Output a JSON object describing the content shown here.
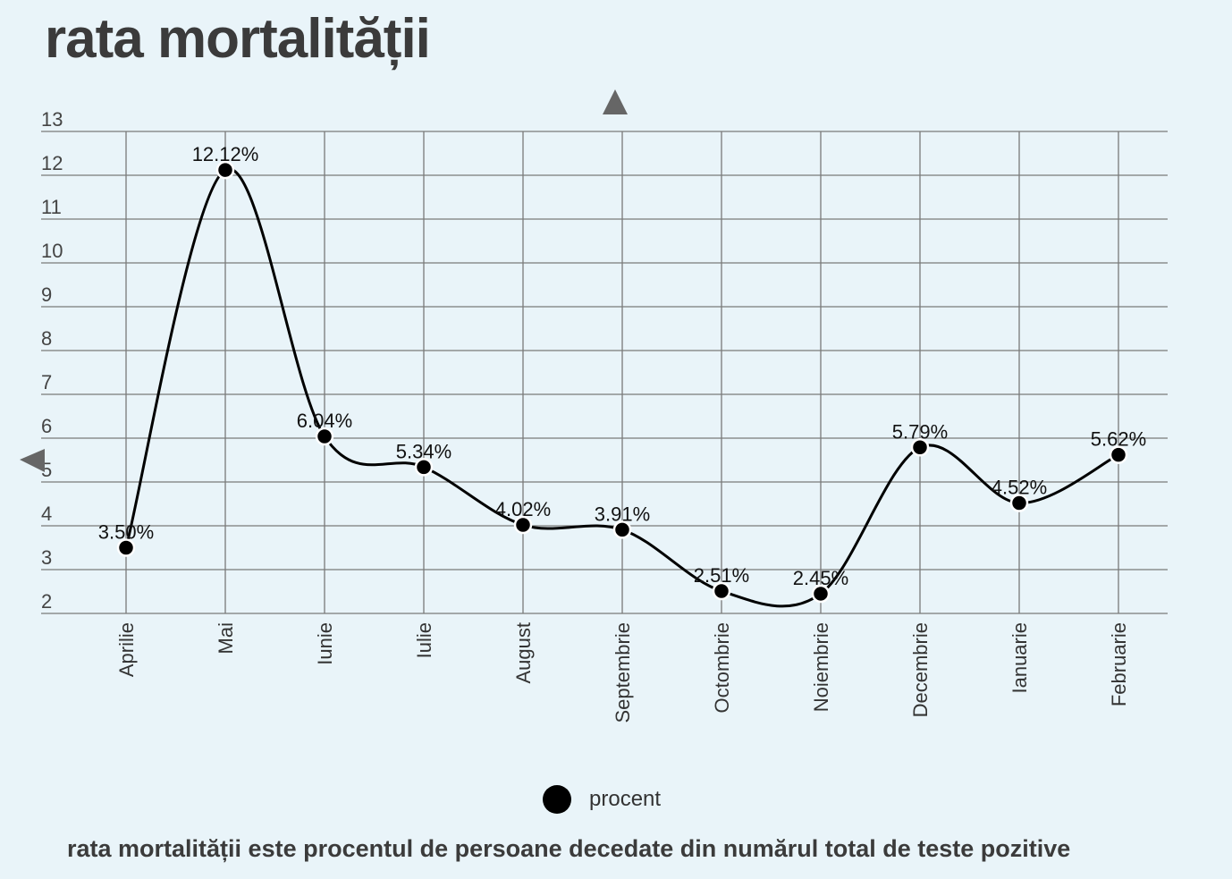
{
  "title": "rata mortalității",
  "caption": "rata mortalității este procentul de persoane decedate din numărul total de teste pozitive",
  "chart_data": {
    "type": "line",
    "title": "rata mortalității",
    "categories": [
      "Aprilie",
      "Mai",
      "Iunie",
      "Iulie",
      "August",
      "Septembrie",
      "Octombrie",
      "Noiembrie",
      "Decembrie",
      "Ianuarie",
      "Februarie"
    ],
    "series": [
      {
        "name": "procent",
        "values": [
          3.5,
          12.12,
          6.04,
          5.34,
          4.02,
          3.91,
          2.51,
          2.45,
          5.79,
          4.52,
          5.62
        ],
        "labels": [
          "3.50%",
          "12.12%",
          "6.04%",
          "5.34%",
          "4.02%",
          "3.91%",
          "2.51%",
          "2.45%",
          "5.79%",
          "4.52%",
          "5.62%"
        ],
        "color": "#000000"
      }
    ],
    "yticks": [
      "2",
      "3",
      "4",
      "5",
      "6",
      "7",
      "8",
      "9",
      "10",
      "11",
      "12",
      "13"
    ],
    "ylim": [
      2,
      13
    ],
    "grid": true,
    "legend": "bottom-center",
    "smooth": true
  }
}
